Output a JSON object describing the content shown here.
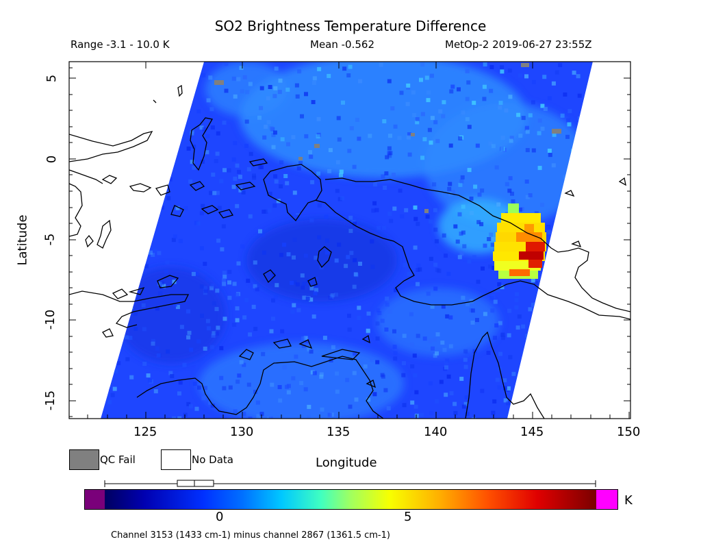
{
  "header": {
    "title": "SO2 Brightness Temperature Difference",
    "range": "Range -3.1 - 10.0 K",
    "mean": "Mean -0.562",
    "satellite": "MetOp-2 2019-06-27 23:55Z"
  },
  "axes": {
    "xlabel": "Longitude",
    "ylabel": "Latitude",
    "x_ticks": [
      "125",
      "130",
      "135",
      "140",
      "145",
      "150"
    ],
    "y_ticks": [
      "5",
      "0",
      "-5",
      "-10",
      "-15"
    ],
    "x_range": [
      121,
      150
    ],
    "y_range": [
      -16,
      6.5
    ]
  },
  "legend": {
    "qc_fail": "QC Fail",
    "no_data": "No Data",
    "qc_color": "#808080"
  },
  "colorbar": {
    "unit": "K",
    "tick_0": "0",
    "tick_5": "5",
    "range": [
      -3.1,
      10.0
    ],
    "under_color": "#7a007a",
    "over_color": "#ff00ff"
  },
  "footnote": "Channel 3153 (1433 cm-1) minus channel 2867 (1361.5 cm-1)",
  "plume": {
    "location": "approx 143.5-146.3 E, -8 to -4 S",
    "max_value_K": 10.0
  }
}
